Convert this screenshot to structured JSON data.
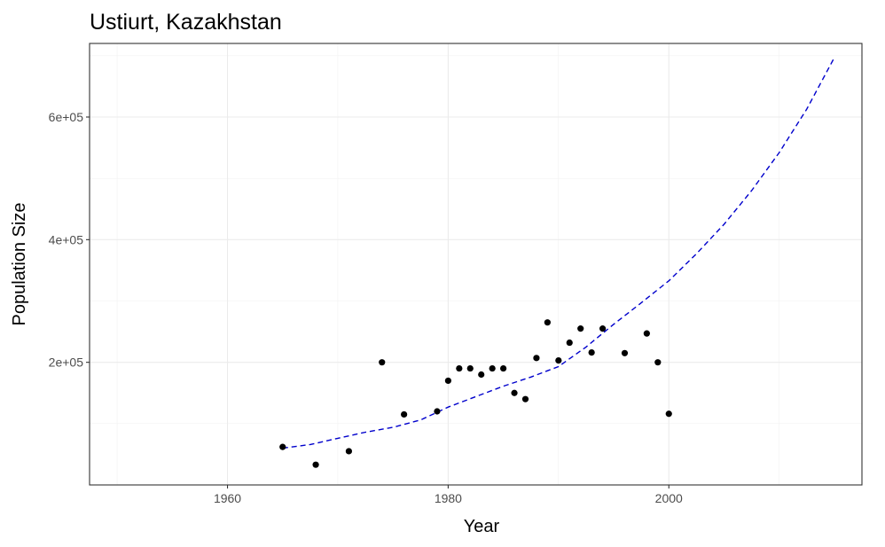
{
  "chart_data": {
    "type": "scatter",
    "title": "Ustiurt, Kazakhstan",
    "xlabel": "Year",
    "ylabel": "Population Size",
    "xlim": [
      1947.5,
      2017.5
    ],
    "ylim": [
      0,
      720000
    ],
    "x_ticks": [
      1960,
      1980,
      2000
    ],
    "x_tick_labels": [
      "1960",
      "1980",
      "2000"
    ],
    "x_minor_ticks": [
      1950,
      1970,
      1990,
      2010
    ],
    "y_ticks": [
      200000,
      400000,
      600000
    ],
    "y_tick_labels": [
      "2e+05",
      "4e+05",
      "6e+05"
    ],
    "y_minor_ticks": [
      100000,
      300000,
      500000,
      700000
    ],
    "grid": true,
    "points": {
      "color": "#000000",
      "x": [
        1965,
        1968,
        1971,
        1974,
        1976,
        1979,
        1980,
        1981,
        1982,
        1983,
        1984,
        1985,
        1986,
        1987,
        1988,
        1989,
        1990,
        1991,
        1992,
        1993,
        1994,
        1996,
        1998,
        1999,
        2000
      ],
      "y": [
        62000,
        33000,
        55000,
        200000,
        115000,
        120000,
        170000,
        190000,
        190000,
        180000,
        190000,
        190000,
        150000,
        140000,
        207000,
        265000,
        203000,
        232000,
        255000,
        216000,
        255000,
        215000,
        247000,
        200000,
        116000
      ]
    },
    "fit_line": {
      "style": "dashed",
      "color": "#0000cc",
      "x": [
        1965,
        1967.5,
        1970,
        1972.5,
        1975,
        1977.5,
        1980,
        1982.5,
        1985,
        1987.5,
        1990,
        1992.5,
        1995,
        1997.5,
        2000,
        2002.5,
        2005,
        2007.5,
        2010,
        2012.5,
        2015
      ],
      "y": [
        60000,
        66000,
        76000,
        86000,
        94000,
        106000,
        127000,
        144000,
        161000,
        176000,
        193000,
        225000,
        262000,
        297000,
        333000,
        377000,
        425000,
        480000,
        542000,
        613000,
        697000
      ]
    }
  }
}
